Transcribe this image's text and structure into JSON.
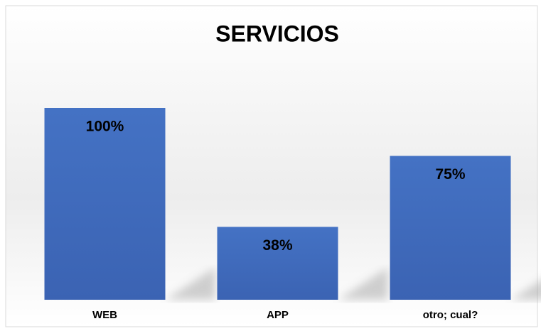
{
  "chart_data": {
    "type": "bar",
    "title": "SERVICIOS",
    "categories": [
      "WEB",
      "APP",
      "otro; cual?"
    ],
    "values": [
      100,
      38,
      75
    ],
    "value_labels": [
      "100%",
      "38%",
      "75%"
    ],
    "color": "#4472c4"
  }
}
